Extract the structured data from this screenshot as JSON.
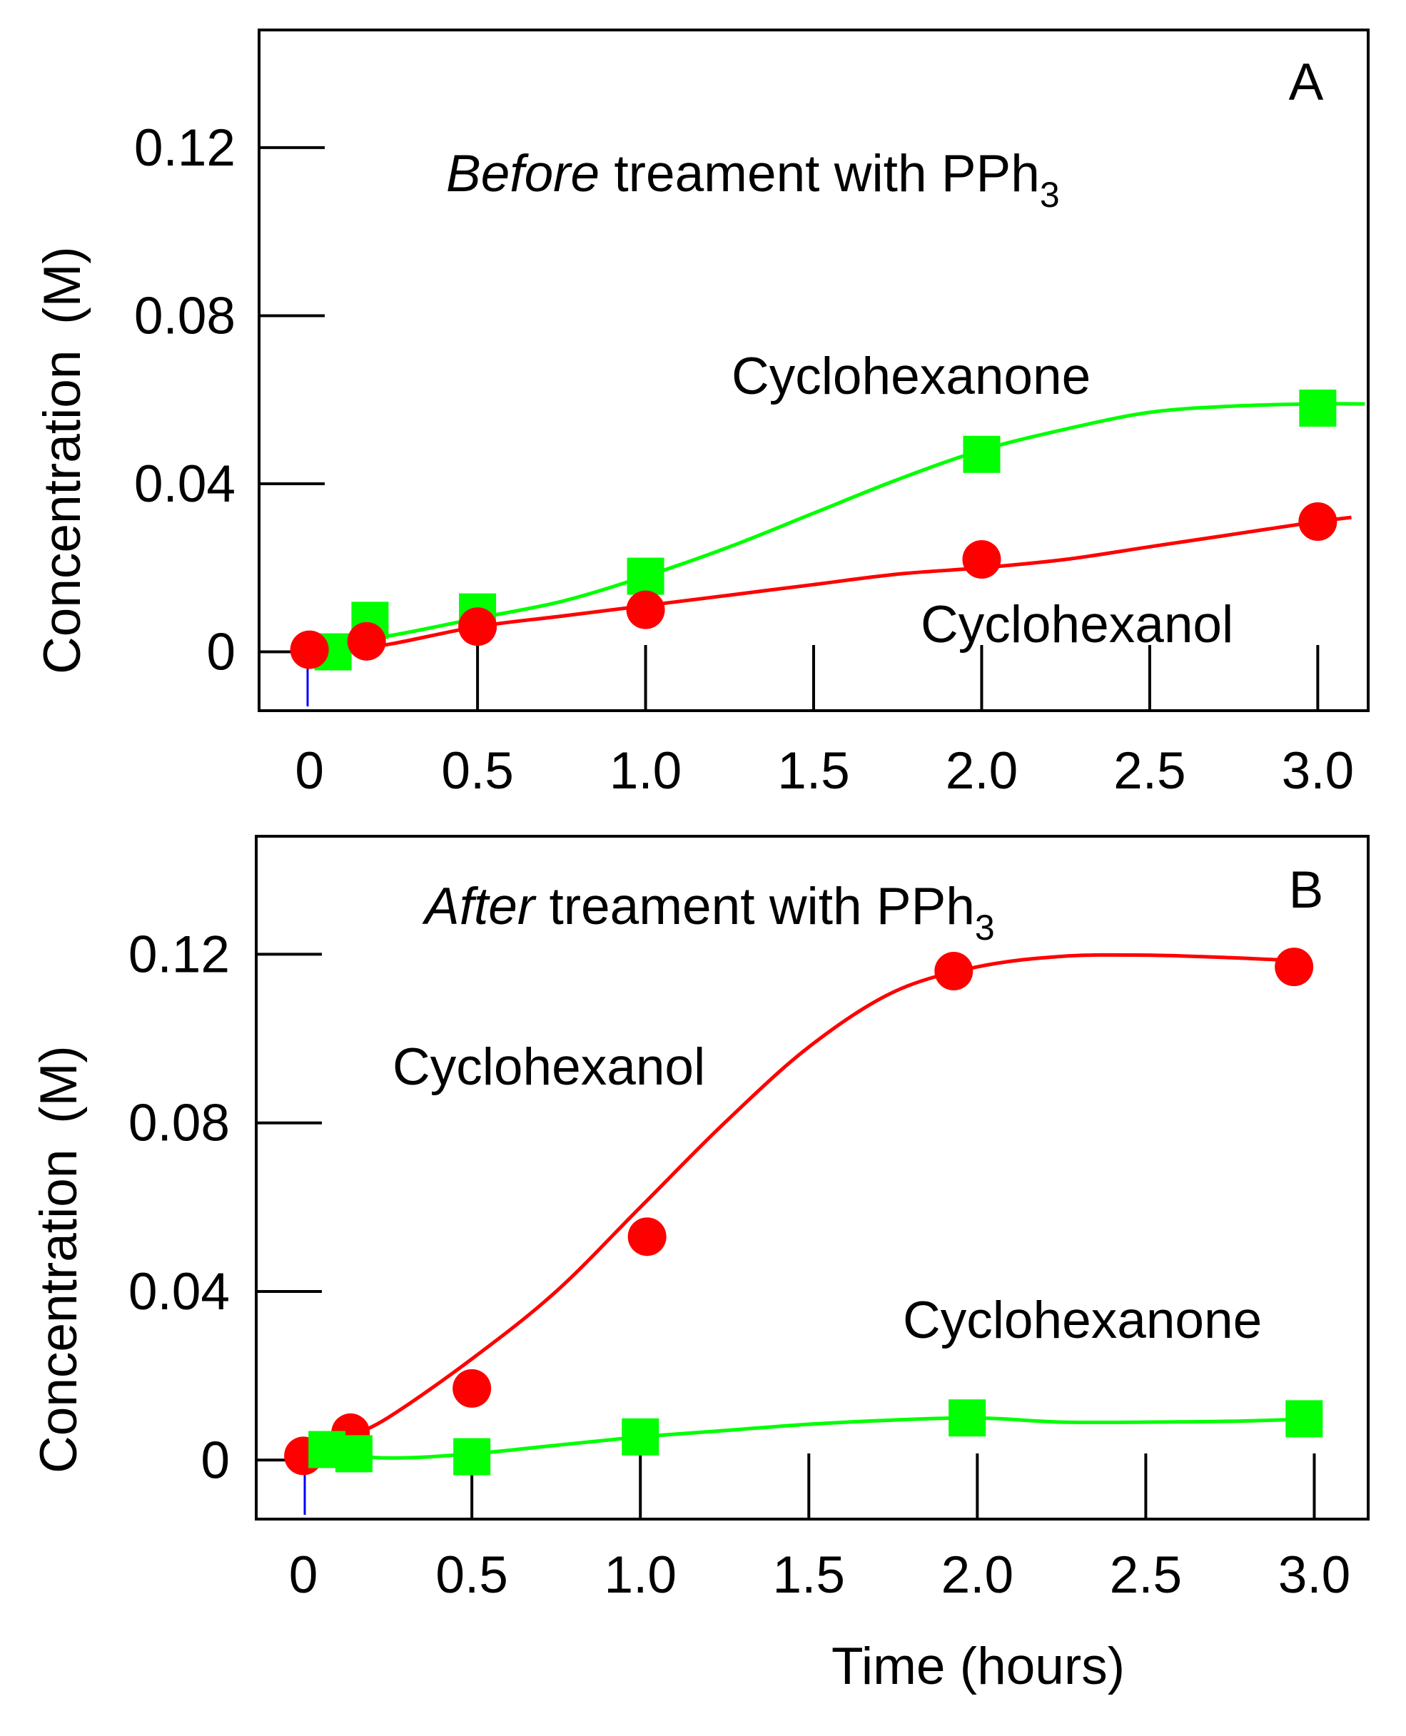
{
  "chart_data": [
    {
      "type": "line",
      "panel_letter": "A",
      "title_em": "Before",
      "title_rest": " treament with PPh",
      "title_sub": "3",
      "xlabel": "",
      "ylabel": "Concentration",
      "ylabel_unit": "(M)",
      "xlim": [
        -0.15,
        3.15
      ],
      "ylim": [
        -0.014,
        0.148
      ],
      "x_ticks": [
        0,
        0.5,
        1.0,
        1.5,
        2.0,
        2.5,
        3.0
      ],
      "x_tick_labels": [
        "0",
        "0.5",
        "1.0",
        "1.5",
        "2.0",
        "2.5",
        "3.0"
      ],
      "y_ticks": [
        0,
        0.04,
        0.08,
        0.12
      ],
      "y_tick_labels": [
        "0",
        "0.04",
        "0.08",
        "0.12"
      ],
      "grid": false,
      "series": [
        {
          "name": "Cyclohexanone",
          "marker": "square",
          "color": "#00ff00",
          "points": [
            [
              0.07,
              0.0
            ],
            [
              0.18,
              0.0075
            ],
            [
              0.5,
              0.0095
            ],
            [
              1.0,
              0.018
            ],
            [
              2.0,
              0.047
            ],
            [
              3.0,
              0.058
            ]
          ],
          "fit": [
            [
              0.0,
              0.001
            ],
            [
              0.25,
              0.004
            ],
            [
              0.5,
              0.008
            ],
            [
              0.75,
              0.012
            ],
            [
              1.0,
              0.018
            ],
            [
              1.25,
              0.025
            ],
            [
              1.5,
              0.033
            ],
            [
              1.75,
              0.041
            ],
            [
              2.0,
              0.048
            ],
            [
              2.25,
              0.053
            ],
            [
              2.5,
              0.057
            ],
            [
              2.75,
              0.0585
            ],
            [
              3.0,
              0.059
            ],
            [
              3.14,
              0.059
            ]
          ]
        },
        {
          "name": "Cyclohexanol",
          "marker": "circle",
          "color": "#ff0000",
          "points": [
            [
              0.0,
              0.0005
            ],
            [
              0.17,
              0.0025
            ],
            [
              0.5,
              0.006
            ],
            [
              1.0,
              0.01
            ],
            [
              2.0,
              0.022
            ],
            [
              3.0,
              0.031
            ]
          ],
          "fit": [
            [
              0.08,
              0.0
            ],
            [
              0.25,
              0.002
            ],
            [
              0.5,
              0.006
            ],
            [
              0.75,
              0.0085
            ],
            [
              1.0,
              0.011
            ],
            [
              1.25,
              0.0135
            ],
            [
              1.5,
              0.016
            ],
            [
              1.75,
              0.0185
            ],
            [
              2.0,
              0.02
            ],
            [
              2.25,
              0.022
            ],
            [
              2.5,
              0.025
            ],
            [
              2.75,
              0.028
            ],
            [
              3.0,
              0.031
            ],
            [
              3.1,
              0.032
            ]
          ]
        }
      ]
    },
    {
      "type": "line",
      "panel_letter": "B",
      "title_em": "After",
      "title_rest": " treament with PPh",
      "title_sub": "3",
      "xlabel": "Time  (hours)",
      "ylabel": "Concentration",
      "ylabel_unit": "(M)",
      "xlim": [
        -0.14,
        3.16
      ],
      "ylim": [
        -0.014,
        0.148
      ],
      "x_ticks": [
        0,
        0.5,
        1.0,
        1.5,
        2.0,
        2.5,
        3.0
      ],
      "x_tick_labels": [
        "0",
        "0.5",
        "1.0",
        "1.5",
        "2.0",
        "2.5",
        "3.0"
      ],
      "y_ticks": [
        0,
        0.04,
        0.08,
        0.12
      ],
      "y_tick_labels": [
        "0",
        "0.04",
        "0.08",
        "0.12"
      ],
      "grid": false,
      "series": [
        {
          "name": "Cyclohexanol",
          "marker": "circle",
          "color": "#ff0000",
          "points": [
            [
              0.0,
              0.001
            ],
            [
              0.14,
              0.0065
            ],
            [
              0.5,
              0.017
            ],
            [
              1.02,
              0.053
            ],
            [
              1.93,
              0.116
            ],
            [
              2.94,
              0.117
            ]
          ],
          "fit": [
            [
              0.12,
              0.005
            ],
            [
              0.25,
              0.01
            ],
            [
              0.5,
              0.024
            ],
            [
              0.75,
              0.04
            ],
            [
              1.0,
              0.06
            ],
            [
              1.25,
              0.08
            ],
            [
              1.5,
              0.098
            ],
            [
              1.75,
              0.111
            ],
            [
              2.0,
              0.117
            ],
            [
              2.25,
              0.1195
            ],
            [
              2.5,
              0.1198
            ],
            [
              2.75,
              0.1192
            ],
            [
              2.94,
              0.1185
            ]
          ]
        },
        {
          "name": "Cyclohexanone",
          "marker": "square",
          "color": "#00ff00",
          "points": [
            [
              0.07,
              0.0025
            ],
            [
              0.15,
              0.0015
            ],
            [
              0.5,
              0.0008
            ],
            [
              1.0,
              0.0055
            ],
            [
              1.97,
              0.01
            ],
            [
              2.97,
              0.0098
            ]
          ],
          "fit": [
            [
              0.0,
              0.002
            ],
            [
              0.25,
              0.0005
            ],
            [
              0.5,
              0.0015
            ],
            [
              0.75,
              0.0035
            ],
            [
              1.0,
              0.0055
            ],
            [
              1.25,
              0.007
            ],
            [
              1.5,
              0.0085
            ],
            [
              1.75,
              0.0095
            ],
            [
              2.0,
              0.01
            ],
            [
              2.25,
              0.009
            ],
            [
              2.5,
              0.009
            ],
            [
              2.75,
              0.0092
            ],
            [
              3.0,
              0.0098
            ]
          ]
        }
      ]
    }
  ]
}
